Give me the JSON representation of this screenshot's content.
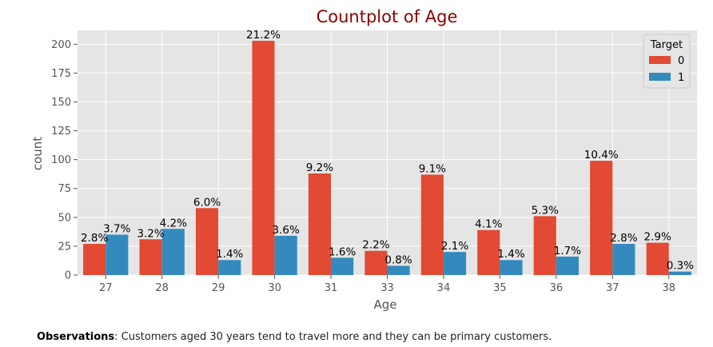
{
  "chart_data": {
    "type": "bar",
    "title": "Countplot of Age",
    "xlabel": "Age",
    "ylabel": "count",
    "ylim": [
      0,
      212
    ],
    "yticks": [
      0,
      25,
      50,
      75,
      100,
      125,
      150,
      175,
      200
    ],
    "categories": [
      "27",
      "28",
      "29",
      "30",
      "31",
      "33",
      "34",
      "35",
      "36",
      "37",
      "38"
    ],
    "grid": true,
    "legend": {
      "title": "Target",
      "position": "top-right"
    },
    "series": [
      {
        "name": "0",
        "color": "#E24A33",
        "values": [
          27,
          31,
          58,
          203,
          88,
          21,
          87,
          39,
          51,
          99,
          28
        ],
        "labels": [
          "2.8%",
          "3.2%",
          "6.0%",
          "21.2%",
          "9.2%",
          "2.2%",
          "9.1%",
          "4.1%",
          "5.3%",
          "10.4%",
          "2.9%"
        ]
      },
      {
        "name": "1",
        "color": "#348ABD",
        "values": [
          35,
          40,
          13,
          34,
          15,
          8,
          20,
          13,
          16,
          27,
          3
        ],
        "labels": [
          "3.7%",
          "4.2%",
          "1.4%",
          "3.6%",
          "1.6%",
          "0.8%",
          "2.1%",
          "1.4%",
          "1.7%",
          "2.8%",
          "0.3%"
        ]
      }
    ]
  },
  "observation": {
    "label": "Observations",
    "text": ": Customers aged 30 years tend to travel more and they can be primary customers."
  },
  "colors": {
    "title": "#8B0000",
    "panel": "#E5E5E5",
    "grid": "#FFFFFF"
  }
}
